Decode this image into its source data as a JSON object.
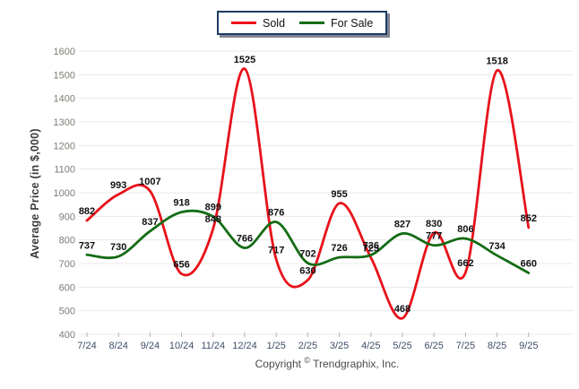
{
  "legend": {
    "items": [
      {
        "label": "Sold",
        "color": "#e8111a"
      },
      {
        "label": "For Sale",
        "color": "#146c14"
      }
    ]
  },
  "y_axis": {
    "title": "Average Price (in $,000)"
  },
  "footer": {
    "prefix": "Copyright",
    "symbol": "©",
    "suffix": "Trendgraphix, Inc."
  },
  "chart_data": {
    "type": "line",
    "title": "",
    "xlabel": "",
    "ylabel": "Average Price (in $,000)",
    "categories": [
      "7/24",
      "8/24",
      "9/24",
      "10/24",
      "11/24",
      "12/24",
      "1/25",
      "2/25",
      "3/25",
      "4/25",
      "5/25",
      "6/25",
      "7/25",
      "8/25",
      "9/25"
    ],
    "series": [
      {
        "name": "Sold",
        "color": "#e8111a",
        "values": [
          882,
          993,
          1007,
          656,
          848,
          1525,
          717,
          630,
          955,
          725,
          468,
          830,
          662,
          1518,
          852
        ]
      },
      {
        "name": "For Sale",
        "color": "#146c14",
        "values": [
          737,
          730,
          837,
          918,
          899,
          766,
          876,
          702,
          726,
          736,
          827,
          777,
          806,
          734,
          660
        ]
      }
    ],
    "ylim": [
      400,
      1600
    ],
    "ytick_step": 100,
    "grid": "horizontal-only",
    "smooth": true,
    "data_labels": true,
    "legend_position": "top-center"
  }
}
